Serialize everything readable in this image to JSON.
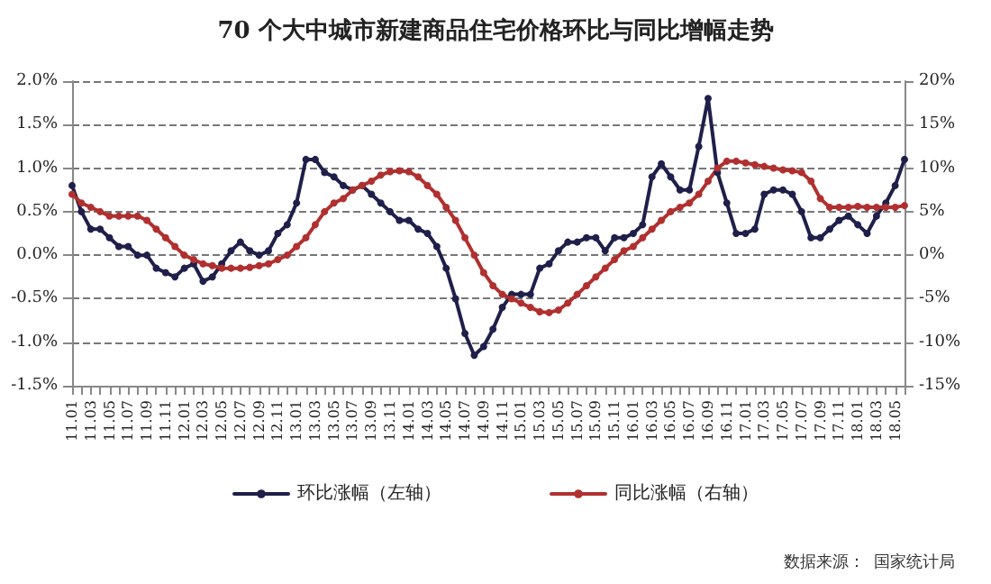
{
  "chart_data": {
    "type": "line",
    "title": "70 个大中城市新建商品住宅价格环比与同比增幅走势",
    "categories": [
      "11.01",
      null,
      "11.03",
      null,
      "11.05",
      null,
      "11.07",
      null,
      "11.09",
      null,
      "11.11",
      null,
      "12.01",
      null,
      "12.03",
      null,
      "12.05",
      null,
      "12.07",
      null,
      "12.09",
      null,
      "12.11",
      null,
      "13.01",
      null,
      "13.03",
      null,
      "13.05",
      null,
      "13.07",
      null,
      "13.09",
      null,
      "13.11",
      null,
      "14.01",
      null,
      "14.03",
      null,
      "14.05",
      null,
      "14.07",
      null,
      "14.09",
      null,
      "14.11",
      null,
      "15.01",
      null,
      "15.03",
      null,
      "15.05",
      null,
      "15.07",
      null,
      "15.09",
      null,
      "15.11",
      null,
      "16.01",
      null,
      "16.03",
      null,
      "16.05",
      null,
      "16.07",
      null,
      "16.09",
      null,
      "16.11",
      null,
      "17.01",
      null,
      "17.03",
      null,
      "17.05",
      null,
      "17.07",
      null,
      "17.09",
      null,
      "17.11",
      null,
      "18.01",
      null,
      "18.03",
      null,
      "18.05",
      null
    ],
    "series": [
      {
        "name": "环比涨幅（左轴）",
        "color": "#1f1f4a",
        "values": [
          0.8,
          0.5,
          0.3,
          0.3,
          0.2,
          0.1,
          0.1,
          0.0,
          0.0,
          -0.15,
          -0.2,
          -0.25,
          -0.15,
          -0.1,
          -0.3,
          -0.25,
          -0.1,
          0.05,
          0.15,
          0.05,
          0.0,
          0.05,
          0.25,
          0.35,
          0.6,
          1.1,
          1.1,
          0.95,
          0.9,
          0.8,
          0.75,
          0.8,
          0.7,
          0.6,
          0.5,
          0.4,
          0.4,
          0.3,
          0.25,
          0.1,
          -0.15,
          -0.5,
          -0.9,
          -1.15,
          -1.05,
          -0.85,
          -0.6,
          -0.45,
          -0.45,
          -0.45,
          -0.15,
          -0.1,
          0.05,
          0.15,
          0.15,
          0.2,
          0.2,
          0.05,
          0.2,
          0.2,
          0.25,
          0.35,
          0.9,
          1.05,
          0.9,
          0.75,
          0.75,
          1.25,
          1.8,
          0.95,
          0.6,
          0.25,
          0.25,
          0.3,
          0.7,
          0.75,
          0.75,
          0.7,
          0.5,
          0.2,
          0.2,
          0.3,
          0.4,
          0.45,
          0.35,
          0.25,
          0.45,
          0.6,
          0.8,
          1.1
        ]
      },
      {
        "name": "同比涨幅（右轴）",
        "color": "#b03030",
        "axis": "y2",
        "values": [
          7,
          6,
          5.5,
          5,
          4.5,
          4.5,
          4.5,
          4.5,
          4,
          3,
          2,
          1,
          0,
          -0.5,
          -1,
          -1.2,
          -1.5,
          -1.5,
          -1.5,
          -1.4,
          -1.2,
          -1,
          -0.5,
          0,
          1,
          2,
          3.5,
          5,
          6,
          6.5,
          7.5,
          8,
          8.5,
          9.2,
          9.6,
          9.7,
          9.6,
          9,
          8,
          7,
          5.5,
          4,
          2,
          0,
          -2,
          -3.5,
          -4.5,
          -5,
          -5.5,
          -6,
          -6.5,
          -6.6,
          -6.3,
          -5.5,
          -4.5,
          -3.5,
          -2.5,
          -1.5,
          -0.5,
          0.5,
          1,
          2,
          3,
          4,
          5,
          5.5,
          6,
          7,
          8.5,
          10,
          10.8,
          10.8,
          10.6,
          10.4,
          10.2,
          10,
          9.8,
          9.7,
          9.5,
          8.5,
          6.5,
          5.5,
          5.5,
          5.5,
          5.6,
          5.5,
          5.5,
          5.5,
          5.5,
          5.7
        ]
      }
    ],
    "ylim": [
      -1.5,
      2
    ],
    "yticks": [
      {
        "value": -1.5,
        "label": "-1.5%"
      },
      {
        "value": -1,
        "label": "-1.0%"
      },
      {
        "value": -0.5,
        "label": "-0.5%"
      },
      {
        "value": 0,
        "label": "0.0%"
      },
      {
        "value": 0.5,
        "label": "0.5%"
      },
      {
        "value": 1,
        "label": "1.0%"
      },
      {
        "value": 1.5,
        "label": "1.5%"
      },
      {
        "value": 2,
        "label": "2.0%"
      }
    ],
    "y2lim": [
      -15,
      20
    ],
    "y2ticks": [
      {
        "value": -15,
        "label": "-15%"
      },
      {
        "value": -10,
        "label": "-10%"
      },
      {
        "value": -5,
        "label": "-5%"
      },
      {
        "value": 0,
        "label": "0%"
      },
      {
        "value": 5,
        "label": "5%"
      },
      {
        "value": 10,
        "label": "10%"
      },
      {
        "value": 15,
        "label": "15%"
      },
      {
        "value": 20,
        "label": "20%"
      }
    ],
    "grid": "y",
    "legend": "bottom",
    "marker": "circle",
    "line_style": "solid",
    "annotations": [
      "数据来源：  国家统计局"
    ]
  }
}
